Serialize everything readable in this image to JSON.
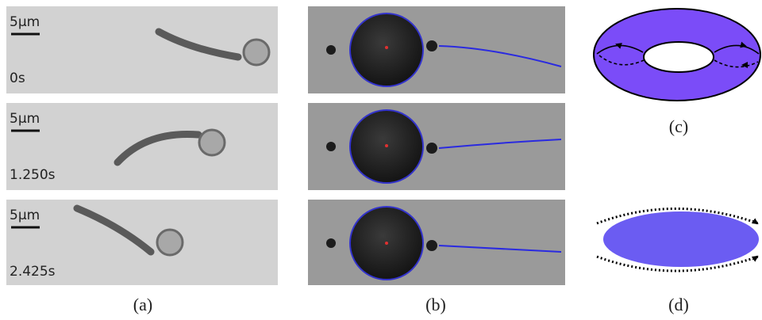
{
  "panels": [
    {
      "label": "(a)",
      "frames": [
        {
          "scale": "5μm",
          "time": "0s"
        },
        {
          "scale": "5μm",
          "time": "1.250s"
        },
        {
          "scale": "5μm",
          "time": "2.425s"
        }
      ]
    },
    {
      "label": "(b)"
    },
    {
      "label": "(c)"
    },
    {
      "label": "(d)"
    }
  ]
}
